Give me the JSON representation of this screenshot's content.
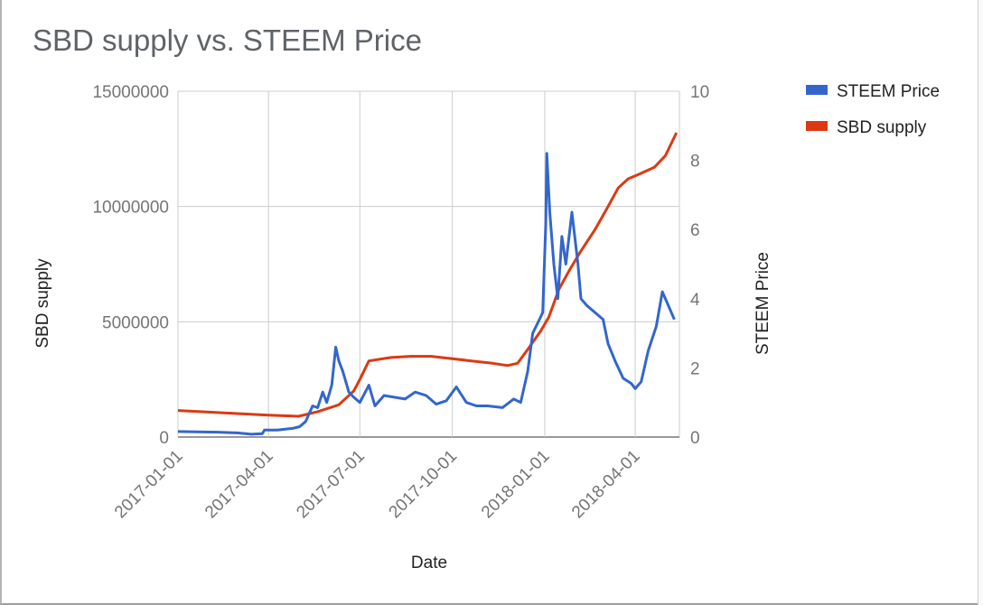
{
  "chart_data": {
    "type": "line",
    "title": "SBD supply vs. STEEM Price",
    "xlabel": "Date",
    "ylabel_left": "SBD supply",
    "ylabel_right": "STEEM Price",
    "x_ticks": [
      "2017-01-01",
      "2017-04-01",
      "2017-07-01",
      "2017-10-01",
      "2018-01-01",
      "2018-04-01"
    ],
    "xlim": [
      "2017-01-01",
      "2018-05-15"
    ],
    "y_left_ticks": [
      "0",
      "5000000",
      "10000000",
      "15000000"
    ],
    "y_left_lim": [
      0,
      15000000
    ],
    "y_right_ticks": [
      "0",
      "2",
      "4",
      "6",
      "8",
      "10"
    ],
    "y_right_lim": [
      0,
      10
    ],
    "grid": true,
    "legend_position": "right",
    "series": [
      {
        "name": "STEEM Price",
        "axis": "right",
        "color": "#3366cc",
        "points": [
          [
            "2017-01-01",
            0.16
          ],
          [
            "2017-01-20",
            0.15
          ],
          [
            "2017-02-10",
            0.14
          ],
          [
            "2017-03-01",
            0.12
          ],
          [
            "2017-03-15",
            0.08
          ],
          [
            "2017-03-26",
            0.1
          ],
          [
            "2017-03-28",
            0.2
          ],
          [
            "2017-04-10",
            0.2
          ],
          [
            "2017-04-25",
            0.25
          ],
          [
            "2017-05-02",
            0.3
          ],
          [
            "2017-05-08",
            0.45
          ],
          [
            "2017-05-15",
            0.9
          ],
          [
            "2017-05-20",
            0.85
          ],
          [
            "2017-05-25",
            1.3
          ],
          [
            "2017-05-29",
            1.0
          ],
          [
            "2017-06-03",
            1.5
          ],
          [
            "2017-06-07",
            2.6
          ],
          [
            "2017-06-10",
            2.2
          ],
          [
            "2017-06-14",
            1.9
          ],
          [
            "2017-06-20",
            1.3
          ],
          [
            "2017-06-25",
            1.15
          ],
          [
            "2017-07-01",
            1.0
          ],
          [
            "2017-07-10",
            1.5
          ],
          [
            "2017-07-16",
            0.9
          ],
          [
            "2017-07-25",
            1.2
          ],
          [
            "2017-08-05",
            1.15
          ],
          [
            "2017-08-15",
            1.1
          ],
          [
            "2017-08-25",
            1.3
          ],
          [
            "2017-09-05",
            1.2
          ],
          [
            "2017-09-15",
            0.95
          ],
          [
            "2017-09-25",
            1.05
          ],
          [
            "2017-10-05",
            1.45
          ],
          [
            "2017-10-15",
            1.0
          ],
          [
            "2017-10-25",
            0.9
          ],
          [
            "2017-11-05",
            0.9
          ],
          [
            "2017-11-20",
            0.85
          ],
          [
            "2017-12-01",
            1.1
          ],
          [
            "2017-12-08",
            1.0
          ],
          [
            "2017-12-15",
            1.9
          ],
          [
            "2017-12-20",
            3.0
          ],
          [
            "2017-12-25",
            3.3
          ],
          [
            "2017-12-30",
            3.6
          ],
          [
            "2018-01-02",
            6.2
          ],
          [
            "2018-01-03",
            8.2
          ],
          [
            "2018-01-06",
            6.5
          ],
          [
            "2018-01-10",
            5.0
          ],
          [
            "2018-01-14",
            4.0
          ],
          [
            "2018-01-18",
            5.8
          ],
          [
            "2018-01-22",
            5.0
          ],
          [
            "2018-01-28",
            6.5
          ],
          [
            "2018-02-03",
            5.0
          ],
          [
            "2018-02-06",
            4.0
          ],
          [
            "2018-02-12",
            3.8
          ],
          [
            "2018-02-20",
            3.6
          ],
          [
            "2018-02-28",
            3.4
          ],
          [
            "2018-03-05",
            2.7
          ],
          [
            "2018-03-12",
            2.2
          ],
          [
            "2018-03-20",
            1.7
          ],
          [
            "2018-03-28",
            1.55
          ],
          [
            "2018-04-01",
            1.4
          ],
          [
            "2018-04-07",
            1.6
          ],
          [
            "2018-04-14",
            2.5
          ],
          [
            "2018-04-22",
            3.2
          ],
          [
            "2018-04-28",
            4.2
          ],
          [
            "2018-05-04",
            3.8
          ],
          [
            "2018-05-10",
            3.4
          ]
        ]
      },
      {
        "name": "SBD supply",
        "axis": "left",
        "color": "#dc3912",
        "points": [
          [
            "2017-01-01",
            1150000
          ],
          [
            "2017-02-01",
            1080000
          ],
          [
            "2017-03-01",
            1020000
          ],
          [
            "2017-04-01",
            950000
          ],
          [
            "2017-05-01",
            900000
          ],
          [
            "2017-05-20",
            1100000
          ],
          [
            "2017-06-10",
            1400000
          ],
          [
            "2017-06-25",
            2000000
          ],
          [
            "2017-07-01",
            2500000
          ],
          [
            "2017-07-10",
            3300000
          ],
          [
            "2017-08-01",
            3450000
          ],
          [
            "2017-08-20",
            3500000
          ],
          [
            "2017-09-10",
            3500000
          ],
          [
            "2017-10-01",
            3400000
          ],
          [
            "2017-10-20",
            3300000
          ],
          [
            "2017-11-10",
            3200000
          ],
          [
            "2017-11-25",
            3100000
          ],
          [
            "2017-12-05",
            3200000
          ],
          [
            "2017-12-15",
            3800000
          ],
          [
            "2017-12-28",
            4600000
          ],
          [
            "2018-01-05",
            5200000
          ],
          [
            "2018-01-15",
            6400000
          ],
          [
            "2018-01-25",
            7200000
          ],
          [
            "2018-02-05",
            8000000
          ],
          [
            "2018-02-20",
            9000000
          ],
          [
            "2018-03-05",
            10000000
          ],
          [
            "2018-03-15",
            10800000
          ],
          [
            "2018-03-25",
            11200000
          ],
          [
            "2018-04-05",
            11400000
          ],
          [
            "2018-04-20",
            11700000
          ],
          [
            "2018-05-01",
            12200000
          ],
          [
            "2018-05-12",
            13200000
          ]
        ]
      }
    ]
  }
}
